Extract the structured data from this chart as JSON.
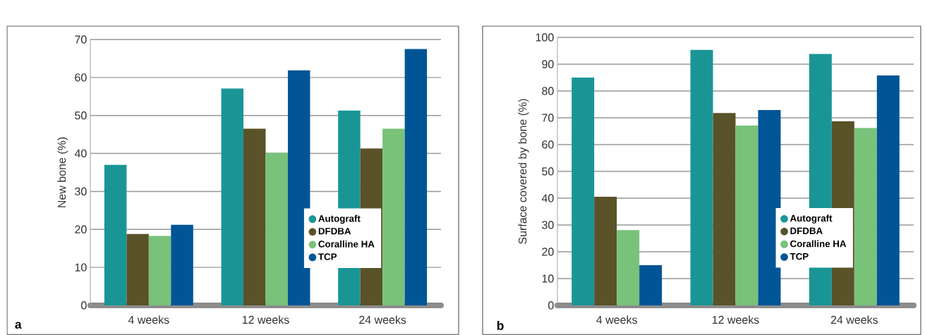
{
  "chart_data": [
    {
      "type": "bar",
      "ylabel": "New bone (%)",
      "categories": [
        "4 weeks",
        "12 weeks",
        "24 weeks"
      ],
      "series": [
        {
          "name": "Autograft",
          "color": "#1a9596",
          "values": [
            37.0,
            57.1,
            51.3
          ]
        },
        {
          "name": "DFDBA",
          "color": "#5a5229",
          "values": [
            18.8,
            46.5,
            41.3
          ]
        },
        {
          "name": "Coralline HA",
          "color": "#78c27a",
          "values": [
            18.3,
            40.2,
            46.5
          ]
        },
        {
          "name": "TCP",
          "color": "#005596",
          "values": [
            21.2,
            61.9,
            67.5
          ]
        }
      ],
      "ylim": [
        0,
        70
      ],
      "yticks": [
        0,
        10,
        20,
        30,
        40,
        50,
        60,
        70
      ],
      "grid": "y",
      "legend": "right",
      "annotations": [
        "a"
      ]
    },
    {
      "type": "bar",
      "ylabel": "Surface covered by bone (%)",
      "categories": [
        "4 weeks",
        "12 weeks",
        "24 weeks"
      ],
      "series": [
        {
          "name": "Autograft",
          "color": "#1a9596",
          "values": [
            85.0,
            95.3,
            93.8
          ]
        },
        {
          "name": "DFDBA",
          "color": "#5a5229",
          "values": [
            40.5,
            71.8,
            68.7
          ]
        },
        {
          "name": "Coralline HA",
          "color": "#78c27a",
          "values": [
            28.1,
            67.1,
            66.2
          ]
        },
        {
          "name": "TCP",
          "color": "#005596",
          "values": [
            15.0,
            72.9,
            85.8
          ]
        }
      ],
      "ylim": [
        0,
        100
      ],
      "yticks": [
        0,
        10,
        20,
        30,
        40,
        50,
        60,
        70,
        80,
        90,
        100
      ],
      "grid": "y",
      "legend": "right",
      "annotations": [
        "b"
      ]
    }
  ]
}
